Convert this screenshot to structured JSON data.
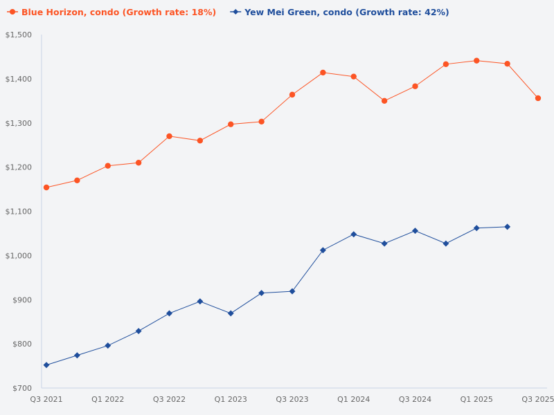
{
  "chart_data": {
    "type": "line",
    "title": "",
    "xlabel": "",
    "ylabel": "",
    "ylim": [
      700,
      1500
    ],
    "yticks": [
      "$700",
      "$800",
      "$900",
      "$1,000",
      "$1,100",
      "$1,200",
      "$1,300",
      "$1,400",
      "$1,500"
    ],
    "ytick_values": [
      700,
      800,
      900,
      1000,
      1100,
      1200,
      1300,
      1400,
      1500
    ],
    "categories": [
      "Q3 2021",
      "Q4 2021",
      "Q1 2022",
      "Q2 2022",
      "Q3 2022",
      "Q4 2022",
      "Q1 2023",
      "Q2 2023",
      "Q3 2023",
      "Q4 2023",
      "Q1 2024",
      "Q2 2024",
      "Q3 2024",
      "Q4 2024",
      "Q1 2025",
      "Q2 2025",
      "Q3 2025"
    ],
    "xtick_labels": [
      "Q3 2021",
      "",
      "Q1 2022",
      "",
      "Q3 2022",
      "",
      "Q1 2023",
      "",
      "Q3 2023",
      "",
      "Q1 2024",
      "",
      "Q3 2024",
      "",
      "Q1 2025",
      "",
      "Q3 2025"
    ],
    "grid": false,
    "legend_position": "top-left",
    "series": [
      {
        "name": "Blue Horizon, condo (Growth rate: 18%)",
        "color": "#fc5424",
        "marker": "circle",
        "values": [
          1154,
          1170,
          1203,
          1210,
          1270,
          1260,
          1297,
          1303,
          1364,
          1414,
          1405,
          1350,
          1383,
          1433,
          1441,
          1434,
          1356
        ]
      },
      {
        "name": "Yew Mei Green, condo (Growth rate: 42%)",
        "color": "#1f4e9c",
        "marker": "diamond",
        "values": [
          752,
          774,
          796,
          829,
          869,
          896,
          869,
          915,
          919,
          1012,
          1048,
          1027,
          1056,
          1027,
          1062,
          1065,
          null
        ]
      }
    ]
  }
}
